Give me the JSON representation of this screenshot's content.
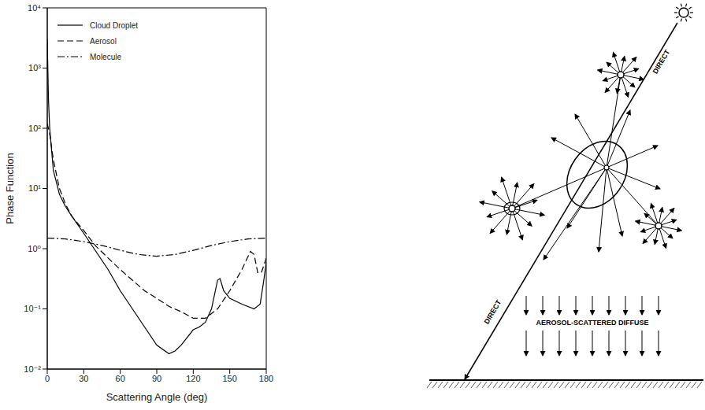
{
  "chart_data": {
    "type": "line",
    "x_label": "Scattering Angle (deg)",
    "y_label": "Phase Function",
    "log": "y",
    "grid": false,
    "legend": "upper left",
    "xlim": [
      0,
      180
    ],
    "xticks": [
      0,
      30,
      60,
      90,
      120,
      150,
      180
    ],
    "ylim": [
      0.01,
      10000
    ],
    "yticks": [
      {
        "value": 0.01,
        "label": "10⁻²"
      },
      {
        "value": 0.1,
        "label": "10⁻¹"
      },
      {
        "value": 1,
        "label": "10⁰"
      },
      {
        "value": 10,
        "label": "10¹"
      },
      {
        "value": 100,
        "label": "10²"
      },
      {
        "value": 1000,
        "label": "10³"
      },
      {
        "value": 10000,
        "label": "10⁴"
      }
    ],
    "series": [
      {
        "name": "Cloud Droplet",
        "color": "#000000",
        "line_style": "solid",
        "x": [
          0,
          1,
          2,
          5,
          10,
          15,
          20,
          30,
          40,
          50,
          60,
          70,
          80,
          90,
          100,
          105,
          110,
          120,
          125,
          130,
          135,
          140,
          142,
          145,
          150,
          160,
          170,
          175,
          178,
          180
        ],
        "values": [
          3000,
          300,
          100,
          20,
          8,
          5,
          3.5,
          1.8,
          0.9,
          0.45,
          0.2,
          0.1,
          0.05,
          0.025,
          0.018,
          0.02,
          0.025,
          0.045,
          0.05,
          0.06,
          0.1,
          0.3,
          0.32,
          0.2,
          0.15,
          0.12,
          0.1,
          0.12,
          0.3,
          0.6
        ]
      },
      {
        "name": "Aerosol",
        "color": "#000000",
        "line_style": "dashed",
        "x": [
          0,
          2,
          5,
          10,
          15,
          20,
          30,
          40,
          50,
          60,
          70,
          80,
          90,
          100,
          110,
          120,
          130,
          140,
          150,
          160,
          167,
          170,
          173,
          176,
          180
        ],
        "values": [
          120,
          80,
          30,
          10,
          5.5,
          3.5,
          2,
          1.1,
          0.7,
          0.45,
          0.3,
          0.2,
          0.15,
          0.11,
          0.09,
          0.07,
          0.07,
          0.1,
          0.2,
          0.45,
          0.9,
          0.8,
          0.4,
          0.4,
          0.7
        ]
      },
      {
        "name": "Molecule",
        "color": "#000000",
        "line_style": "dashdot",
        "x": [
          0,
          15,
          30,
          45,
          60,
          75,
          90,
          105,
          120,
          135,
          150,
          165,
          180
        ],
        "values": [
          1.5,
          1.45,
          1.31,
          1.13,
          0.94,
          0.8,
          0.75,
          0.8,
          0.94,
          1.13,
          1.31,
          1.45,
          1.5
        ]
      }
    ]
  },
  "diagram": {
    "direct_labels": [
      "DIRECT",
      "DIRECT"
    ],
    "diffuse_label": "AEROSOL-SCATTERED DIFFUSE"
  }
}
